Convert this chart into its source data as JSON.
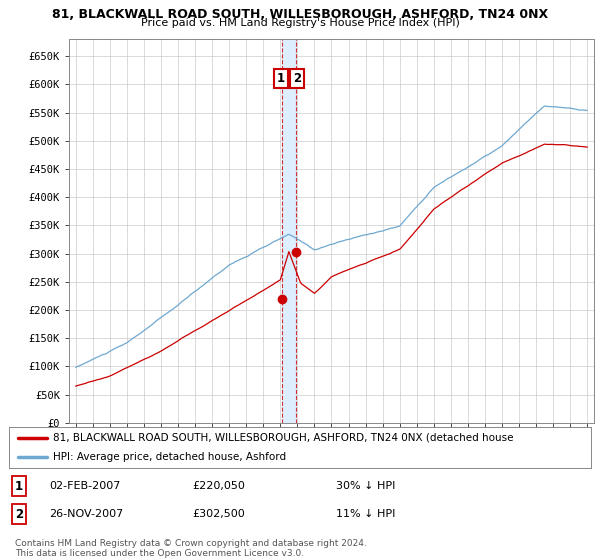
{
  "title_line1": "81, BLACKWALL ROAD SOUTH, WILLESBOROUGH, ASHFORD, TN24 0NX",
  "title_line2": "Price paid vs. HM Land Registry's House Price Index (HPI)",
  "ylabel_ticks": [
    "£0",
    "£50K",
    "£100K",
    "£150K",
    "£200K",
    "£250K",
    "£300K",
    "£350K",
    "£400K",
    "£450K",
    "£500K",
    "£550K",
    "£600K",
    "£650K"
  ],
  "ytick_vals": [
    0,
    50000,
    100000,
    150000,
    200000,
    250000,
    300000,
    350000,
    400000,
    450000,
    500000,
    550000,
    600000,
    650000
  ],
  "hpi_color": "#6ea8d0",
  "price_color": "#cc0000",
  "shade_color": "#ddeeff",
  "t1_year": 2007.083,
  "t2_year": 2007.917,
  "t1_price": 220050,
  "t2_price": 302500,
  "legend_line1": "81, BLACKWALL ROAD SOUTH, WILLESBOROUGH, ASHFORD, TN24 0NX (detached house",
  "legend_line2": "HPI: Average price, detached house, Ashford",
  "footer": "Contains HM Land Registry data © Crown copyright and database right 2024.\nThis data is licensed under the Open Government Licence v3.0.",
  "background_color": "#ffffff",
  "grid_color": "#cccccc",
  "ylim": [
    0,
    680000
  ],
  "xlim_left": 1994.6,
  "xlim_right": 2025.4
}
